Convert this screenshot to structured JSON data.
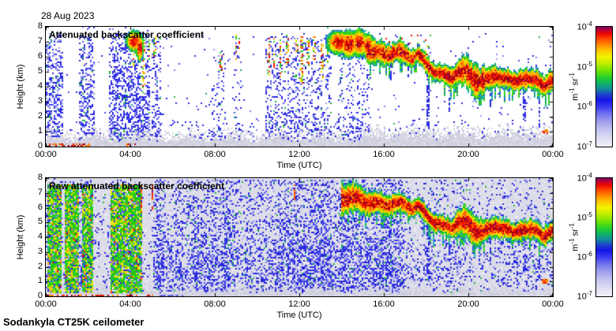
{
  "header": {
    "date": "28 Aug 2023"
  },
  "footer": {
    "caption": "Sodankyla CT25K ceilometer"
  },
  "colorbar_display": {
    "ticks": [
      {
        "base": "10",
        "exp": "-4"
      },
      {
        "base": "10",
        "exp": "-5"
      },
      {
        "base": "10",
        "exp": "-6"
      },
      {
        "base": "10",
        "exp": "-7"
      }
    ],
    "unit_parts": [
      {
        "t": "m"
      },
      {
        "t": "-1",
        "sup": true
      },
      {
        "t": " sr"
      },
      {
        "t": "-1",
        "sup": true
      }
    ],
    "gradient_stops": [
      [
        0,
        "#f0eff9"
      ],
      [
        0.06,
        "#e2e1f5"
      ],
      [
        0.13,
        "#c8c8f0"
      ],
      [
        0.2,
        "#a4a4ec"
      ],
      [
        0.27,
        "#7474ee"
      ],
      [
        0.33,
        "#3c3cf2"
      ],
      [
        0.39,
        "#1414e6"
      ],
      [
        0.44,
        "#1e48c8"
      ],
      [
        0.48,
        "#128c9c"
      ],
      [
        0.53,
        "#10b464"
      ],
      [
        0.58,
        "#28d228"
      ],
      [
        0.64,
        "#78e400"
      ],
      [
        0.7,
        "#c8ee00"
      ],
      [
        0.75,
        "#f2f200"
      ],
      [
        0.8,
        "#ffc800"
      ],
      [
        0.85,
        "#ff8c00"
      ],
      [
        0.9,
        "#ff4600"
      ],
      [
        0.94,
        "#ee0a00"
      ],
      [
        0.97,
        "#c00032"
      ],
      [
        1,
        "#7c0062"
      ]
    ]
  },
  "chart_data": {
    "type": "heatmap",
    "x": {
      "label": "Time (UTC)",
      "range_hours": [
        0,
        24
      ],
      "tick_hours": [
        0,
        4,
        8,
        12,
        16,
        20,
        24
      ],
      "tick_labels": [
        "00:00",
        "04:00",
        "08:00",
        "12:00",
        "16:00",
        "20:00",
        "00:00"
      ]
    },
    "y": {
      "label": "Height (km)",
      "range_km": [
        0,
        8
      ],
      "ticks": [
        0,
        1,
        2,
        3,
        4,
        5,
        6,
        7,
        8
      ]
    },
    "colorbar": {
      "scale": "log",
      "min": "1e-7",
      "max": "1e-4",
      "unit": "m^-1 sr^-1"
    },
    "cloud_layer_track": [
      [
        14.0,
        6.55,
        0.55
      ],
      [
        14.4,
        6.6,
        0.5
      ],
      [
        14.8,
        6.5,
        0.5
      ],
      [
        15.2,
        6.45,
        0.42
      ],
      [
        15.6,
        6.35,
        0.4
      ],
      [
        16.0,
        6.3,
        0.38
      ],
      [
        16.5,
        6.25,
        0.36
      ],
      [
        17.0,
        6.1,
        0.34
      ],
      [
        17.3,
        5.9,
        0.3
      ],
      [
        17.6,
        6.05,
        0.3
      ],
      [
        18.0,
        5.6,
        0.32
      ],
      [
        18.4,
        5.15,
        0.3
      ],
      [
        18.8,
        4.8,
        0.3
      ],
      [
        19.2,
        4.65,
        0.34
      ],
      [
        19.5,
        4.95,
        0.4
      ],
      [
        19.9,
        4.85,
        0.5
      ],
      [
        20.3,
        4.5,
        0.55
      ],
      [
        20.7,
        4.35,
        0.45
      ],
      [
        21.0,
        4.6,
        0.38
      ],
      [
        21.3,
        4.95,
        0.34
      ],
      [
        21.7,
        4.55,
        0.32
      ],
      [
        22.1,
        4.25,
        0.32
      ],
      [
        22.5,
        4.5,
        0.32
      ],
      [
        22.9,
        4.3,
        0.34
      ],
      [
        23.3,
        4.55,
        0.32
      ],
      [
        23.6,
        4.15,
        0.34
      ],
      [
        24.0,
        4.4,
        0.36
      ]
    ],
    "virga_streaks": [
      [
        16.35,
        1.5
      ],
      [
        17.15,
        1.2
      ],
      [
        18.1,
        3.8
      ],
      [
        19.1,
        2.0
      ],
      [
        21.05,
        1.8
      ],
      [
        22.65,
        2.4
      ],
      [
        23.35,
        3.0
      ]
    ],
    "orange_dash": {
      "t0": 23.5,
      "t1": 23.8,
      "h0": 0.85,
      "h1": 1.15
    },
    "panels": [
      {
        "id": "attenuated",
        "title": "Attenuated backscatter coefficient",
        "bg": "#ffffff",
        "layer_start_hour": 15.2,
        "ambient_density": 0.02,
        "gray_band_base": 0.5,
        "noise_columns": [
          [
            0.0,
            0.8,
            0.5,
            7.6
          ],
          [
            1.6,
            2.3,
            0.45,
            7.5
          ],
          [
            3.0,
            4.95,
            0.55,
            7.6
          ],
          [
            5.0,
            5.45,
            0.28,
            7.3
          ],
          [
            7.85,
            8.5,
            0.18,
            6.6
          ],
          [
            8.9,
            9.3,
            0.14,
            7.4
          ],
          [
            10.4,
            13.5,
            0.3,
            7.4
          ],
          [
            13.8,
            15.3,
            0.22,
            7.4
          ]
        ],
        "high_blobs": [
          [
            4.2,
            7.05,
            0.22,
            0.38
          ],
          [
            4.45,
            6.6,
            0.1,
            0.5
          ],
          [
            13.85,
            6.95,
            0.3,
            0.42
          ],
          [
            14.35,
            6.85,
            0.25,
            0.5
          ],
          [
            14.85,
            6.9,
            0.22,
            0.5
          ],
          [
            15.25,
            6.7,
            0.15,
            0.45
          ]
        ],
        "colored_streaks": [
          [
            4.15,
            5.2,
            7.5
          ],
          [
            4.4,
            5.6,
            7.2
          ],
          [
            4.65,
            3.6,
            7.4
          ],
          [
            4.9,
            5.8,
            7.3
          ],
          [
            5.15,
            6.0,
            7.4
          ],
          [
            8.3,
            4.9,
            6.3
          ],
          [
            9.0,
            5.6,
            7.5
          ],
          [
            9.15,
            6.2,
            7.3
          ],
          [
            10.55,
            4.4,
            7.3
          ],
          [
            10.8,
            5.2,
            7.4
          ],
          [
            11.1,
            4.6,
            7.2
          ],
          [
            11.45,
            5.5,
            7.5
          ],
          [
            11.9,
            6.3,
            7.2
          ],
          [
            12.1,
            4.2,
            7.4
          ],
          [
            12.4,
            5.0,
            7.3
          ],
          [
            12.7,
            5.8,
            7.4
          ],
          [
            13.1,
            4.5,
            7.2
          ],
          [
            13.35,
            5.3,
            7.0
          ]
        ],
        "surface_red_intervals": [
          [
            0.0,
            2.15
          ],
          [
            3.85,
            4.3
          ]
        ]
      },
      {
        "id": "raw",
        "title": "Raw attenuated backscatter coefficient",
        "bg": "#dcdce8",
        "layer_start_hour": 14.0,
        "ambient_density": 0.42,
        "gray_band_base": 0.32,
        "dense_green_bands": [
          [
            0.05,
            0.78
          ],
          [
            0.9,
            1.55
          ],
          [
            1.7,
            2.27
          ],
          [
            3.1,
            4.58
          ]
        ],
        "light_gaps": [
          [
            0.78,
            0.9
          ],
          [
            2.27,
            3.1
          ],
          [
            4.58,
            5.05
          ]
        ],
        "dark_noise_bands": [
          [
            5.2,
            5.6
          ],
          [
            6.15,
            6.5
          ],
          [
            6.9,
            7.25
          ],
          [
            8.35,
            8.75
          ],
          [
            9.45,
            9.75
          ],
          [
            11.0,
            13.5
          ],
          [
            13.9,
            16.8
          ]
        ],
        "red_spikes": [
          [
            4.5,
            5.6,
            7.6
          ],
          [
            5.05,
            5.8,
            7.6
          ],
          [
            11.78,
            6.5,
            7.6
          ]
        ],
        "surface_red_intervals": [
          [
            0.0,
            5.1
          ]
        ],
        "surface_blue_interval": [
          4.8,
          6.5
        ]
      }
    ]
  }
}
